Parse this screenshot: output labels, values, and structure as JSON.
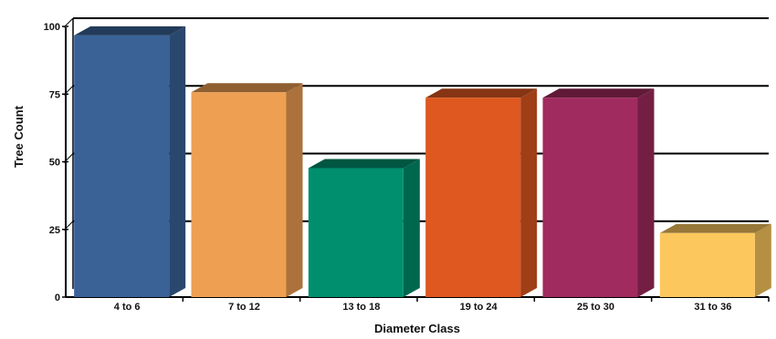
{
  "chart_data": {
    "type": "bar",
    "xlabel": "Diameter Class",
    "ylabel": "Tree Count",
    "ylim": [
      0,
      100
    ],
    "yticks": [
      0,
      25,
      50,
      75,
      100
    ],
    "grid": true,
    "categories": [
      "4 to 6",
      "7 to 12",
      "13 to 18",
      "19 to 24",
      "25 to 30",
      "31 to 36"
    ],
    "values": [
      97,
      76,
      48,
      74,
      74,
      24
    ],
    "colors": [
      "#3a6297",
      "#ee9f52",
      "#008f6e",
      "#de5820",
      "#a02b5e",
      "#fcc85d"
    ]
  }
}
